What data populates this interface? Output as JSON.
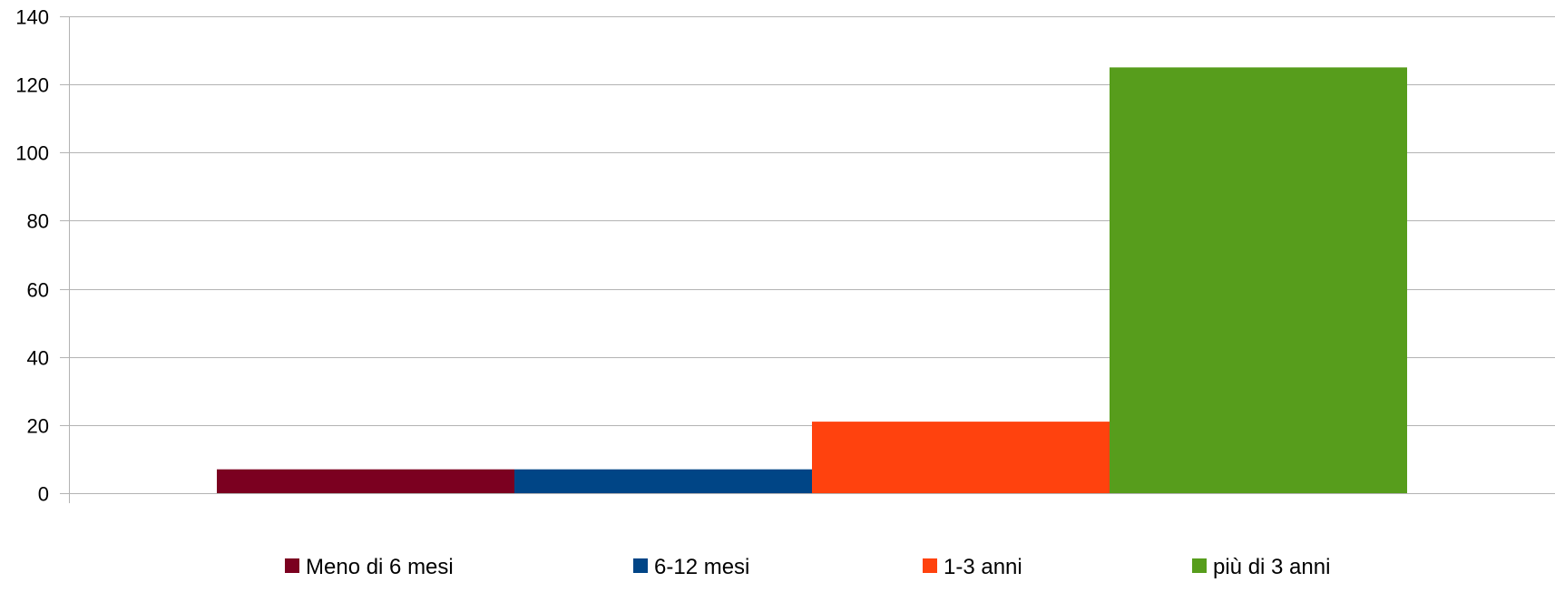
{
  "chart_data": {
    "type": "bar",
    "title": "",
    "xlabel": "",
    "ylabel": "",
    "ylim": [
      0,
      140
    ],
    "yticks": [
      0,
      20,
      40,
      60,
      80,
      100,
      120,
      140
    ],
    "grid": true,
    "legend_position": "bottom",
    "series": [
      {
        "name": "Meno di 6 mesi",
        "values": [
          7
        ],
        "color": "#7b0020"
      },
      {
        "name": "6-12 mesi",
        "values": [
          7
        ],
        "color": "#004586"
      },
      {
        "name": "1-3 anni",
        "values": [
          21
        ],
        "color": "#ff420e"
      },
      {
        "name": "più di 3 anni",
        "values": [
          125
        ],
        "color": "#579d1c"
      }
    ]
  }
}
